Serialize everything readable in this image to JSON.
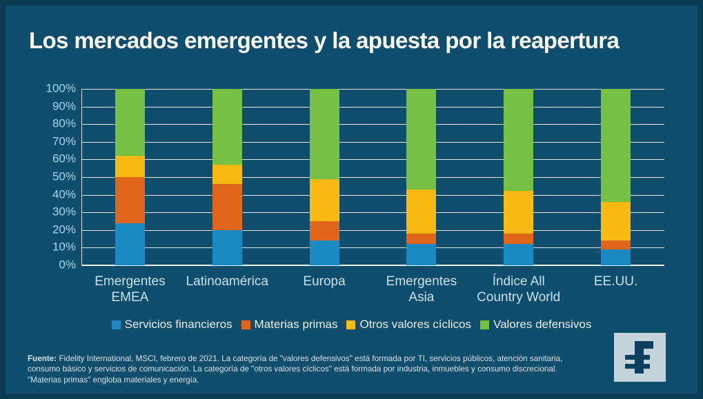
{
  "title": "Los mercados emergentes y la apuesta por la reapertura",
  "colors": {
    "background": "#0F4D6C",
    "frame": "#0C3C55",
    "gridline": "#DCE8EE",
    "title_text": "#FFFFFF",
    "y_tick_text": "#A5D7F0",
    "x_label_text": "#C8E2F0",
    "legend_text": "#E9F3F9",
    "footnote_text": "#D2E3EE",
    "logo_background": "#C2D3DC",
    "logo_glyph": "#0E3E59"
  },
  "chart_data": {
    "type": "bar",
    "subtype": "stacked-100-percent-column",
    "categories": [
      "Emergentes\nEMEA",
      "Latinoamérica",
      "Europa",
      "Emergentes\nAsia",
      "Índice All\nCountry World",
      "EE.UU."
    ],
    "series": [
      {
        "name": "Servicios financieros",
        "color": "#1B8AC4",
        "values": [
          24,
          20,
          14,
          12,
          12,
          9
        ]
      },
      {
        "name": "Materias primas",
        "color": "#E2661A",
        "values": [
          26,
          26,
          11,
          6,
          6,
          5
        ]
      },
      {
        "name": "Otros valores cíclicos",
        "color": "#FBBA12",
        "values": [
          12,
          11,
          24,
          25,
          24,
          22
        ]
      },
      {
        "name": "Valores defensivos",
        "color": "#76C043",
        "values": [
          38,
          43,
          51,
          57,
          58,
          64
        ]
      }
    ],
    "yticks": [
      "100%",
      "90%",
      "80%",
      "70%",
      "60%",
      "50%",
      "40%",
      "30%",
      "20%",
      "10%",
      "0%"
    ],
    "ylim": [
      0,
      100
    ],
    "grid": true,
    "legend_position": "bottom"
  },
  "footnote": {
    "source_label": "Fuente:",
    "text": " Fidelity International, MSCI, febrero de 2021. La categoría de \"valores defensivos\" está formada por TI, servicios públicos, atención sanitaria, consumo básico y servicios de comunicación. La categoría de \"otros valores cíclicos\" está formada por industria, inmuebles y consumo discrecional. \"Materias primas\" engloba materiales y energía."
  },
  "logo": {
    "letter": "F"
  }
}
